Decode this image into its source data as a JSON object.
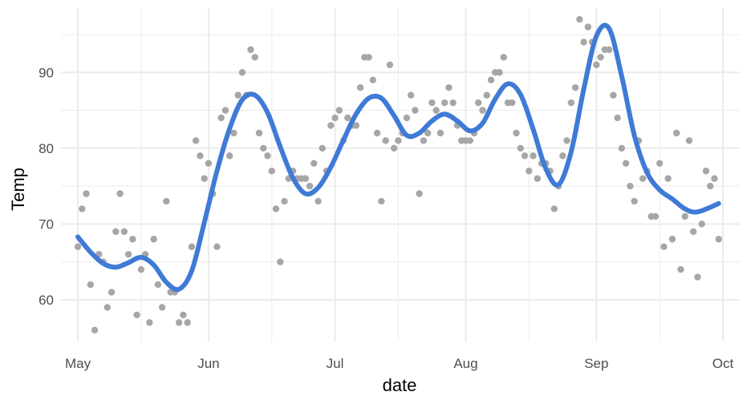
{
  "chart_data": {
    "type": "scatter",
    "xlabel": "date",
    "ylabel": "Temp",
    "xlim": [
      "1973-04-27",
      "1973-10-05"
    ],
    "ylim": [
      54.5,
      98.5
    ],
    "x_ticks": [
      {
        "date": "1973-05-01",
        "label": "May"
      },
      {
        "date": "1973-06-01",
        "label": "Jun"
      },
      {
        "date": "1973-07-01",
        "label": "Jul"
      },
      {
        "date": "1973-08-01",
        "label": "Aug"
      },
      {
        "date": "1973-09-01",
        "label": "Sep"
      },
      {
        "date": "1973-10-01",
        "label": "Oct"
      }
    ],
    "x_minor_ticks": [
      "1973-05-16",
      "1973-06-16",
      "1973-07-16",
      "1973-08-16",
      "1973-09-16"
    ],
    "y_ticks": [
      60,
      70,
      80,
      90
    ],
    "y_minor_ticks": [
      65,
      75,
      85,
      95
    ],
    "grid": true,
    "colors": {
      "points": "#a6a6a6",
      "smooth": "#3f7ad6",
      "grid": "#ebebeb"
    },
    "series": [
      {
        "kind": "points",
        "x": [
          "1973-05-01",
          "1973-05-02",
          "1973-05-03",
          "1973-05-04",
          "1973-05-05",
          "1973-05-06",
          "1973-05-07",
          "1973-05-08",
          "1973-05-09",
          "1973-05-10",
          "1973-05-11",
          "1973-05-12",
          "1973-05-13",
          "1973-05-14",
          "1973-05-15",
          "1973-05-16",
          "1973-05-17",
          "1973-05-18",
          "1973-05-19",
          "1973-05-20",
          "1973-05-21",
          "1973-05-22",
          "1973-05-23",
          "1973-05-24",
          "1973-05-25",
          "1973-05-26",
          "1973-05-27",
          "1973-05-28",
          "1973-05-29",
          "1973-05-30",
          "1973-05-31",
          "1973-06-01",
          "1973-06-02",
          "1973-06-03",
          "1973-06-04",
          "1973-06-05",
          "1973-06-06",
          "1973-06-07",
          "1973-06-08",
          "1973-06-09",
          "1973-06-10",
          "1973-06-11",
          "1973-06-12",
          "1973-06-13",
          "1973-06-14",
          "1973-06-15",
          "1973-06-16",
          "1973-06-17",
          "1973-06-18",
          "1973-06-19",
          "1973-06-20",
          "1973-06-21",
          "1973-06-22",
          "1973-06-23",
          "1973-06-24",
          "1973-06-25",
          "1973-06-26",
          "1973-06-27",
          "1973-06-28",
          "1973-06-29",
          "1973-06-30",
          "1973-07-01",
          "1973-07-02",
          "1973-07-03",
          "1973-07-04",
          "1973-07-05",
          "1973-07-06",
          "1973-07-07",
          "1973-07-08",
          "1973-07-09",
          "1973-07-10",
          "1973-07-11",
          "1973-07-12",
          "1973-07-13",
          "1973-07-14",
          "1973-07-15",
          "1973-07-16",
          "1973-07-17",
          "1973-07-18",
          "1973-07-19",
          "1973-07-20",
          "1973-07-21",
          "1973-07-22",
          "1973-07-23",
          "1973-07-24",
          "1973-07-25",
          "1973-07-26",
          "1973-07-27",
          "1973-07-28",
          "1973-07-29",
          "1973-07-30",
          "1973-07-31",
          "1973-08-01",
          "1973-08-02",
          "1973-08-03",
          "1973-08-04",
          "1973-08-05",
          "1973-08-06",
          "1973-08-07",
          "1973-08-08",
          "1973-08-09",
          "1973-08-10",
          "1973-08-11",
          "1973-08-12",
          "1973-08-13",
          "1973-08-14",
          "1973-08-15",
          "1973-08-16",
          "1973-08-17",
          "1973-08-18",
          "1973-08-19",
          "1973-08-20",
          "1973-08-21",
          "1973-08-22",
          "1973-08-23",
          "1973-08-24",
          "1973-08-25",
          "1973-08-26",
          "1973-08-27",
          "1973-08-28",
          "1973-08-29",
          "1973-08-30",
          "1973-08-31",
          "1973-09-01",
          "1973-09-02",
          "1973-09-03",
          "1973-09-04",
          "1973-09-05",
          "1973-09-06",
          "1973-09-07",
          "1973-09-08",
          "1973-09-09",
          "1973-09-10",
          "1973-09-11",
          "1973-09-12",
          "1973-09-13",
          "1973-09-14",
          "1973-09-15",
          "1973-09-16",
          "1973-09-17",
          "1973-09-18",
          "1973-09-19",
          "1973-09-20",
          "1973-09-21",
          "1973-09-22",
          "1973-09-23",
          "1973-09-24",
          "1973-09-25",
          "1973-09-26",
          "1973-09-27",
          "1973-09-28",
          "1973-09-29",
          "1973-09-30"
        ],
        "y": [
          67,
          72,
          74,
          62,
          56,
          66,
          65,
          59,
          61,
          69,
          74,
          69,
          66,
          68,
          58,
          64,
          66,
          57,
          68,
          62,
          59,
          73,
          61,
          61,
          57,
          58,
          57,
          67,
          81,
          79,
          76,
          78,
          74,
          67,
          84,
          85,
          79,
          82,
          87,
          90,
          87,
          93,
          92,
          82,
          80,
          79,
          77,
          72,
          65,
          73,
          76,
          77,
          76,
          76,
          76,
          75,
          78,
          73,
          80,
          77,
          83,
          84,
          85,
          81,
          84,
          83,
          83,
          88,
          92,
          92,
          89,
          82,
          73,
          81,
          91,
          80,
          81,
          82,
          84,
          87,
          85,
          74,
          81,
          82,
          86,
          85,
          82,
          86,
          88,
          86,
          83,
          81,
          81,
          81,
          82,
          86,
          85,
          87,
          89,
          90,
          90,
          92,
          86,
          86,
          82,
          80,
          79,
          77,
          79,
          76,
          78,
          78,
          77,
          72,
          75,
          79,
          81,
          86,
          88,
          97,
          94,
          96,
          94,
          91,
          92,
          93,
          93,
          87,
          84,
          80,
          78,
          75,
          73,
          81,
          76,
          77,
          71,
          71,
          78,
          67,
          76,
          68,
          82,
          64,
          71,
          81,
          69,
          63,
          70,
          77,
          75,
          76,
          68
        ]
      },
      {
        "kind": "smooth",
        "x": [
          "1973-05-01",
          "1973-05-04",
          "1973-05-07",
          "1973-05-10",
          "1973-05-13",
          "1973-05-16",
          "1973-05-19",
          "1973-05-22",
          "1973-05-25",
          "1973-05-28",
          "1973-05-31",
          "1973-06-03",
          "1973-06-06",
          "1973-06-09",
          "1973-06-12",
          "1973-06-15",
          "1973-06-18",
          "1973-06-21",
          "1973-06-24",
          "1973-06-27",
          "1973-06-30",
          "1973-07-03",
          "1973-07-06",
          "1973-07-09",
          "1973-07-12",
          "1973-07-15",
          "1973-07-18",
          "1973-07-21",
          "1973-07-24",
          "1973-07-27",
          "1973-07-30",
          "1973-08-02",
          "1973-08-05",
          "1973-08-08",
          "1973-08-11",
          "1973-08-14",
          "1973-08-17",
          "1973-08-20",
          "1973-08-23",
          "1973-08-26",
          "1973-08-29",
          "1973-09-01",
          "1973-09-04",
          "1973-09-07",
          "1973-09-10",
          "1973-09-13",
          "1973-09-16",
          "1973-09-19",
          "1973-09-22",
          "1973-09-25",
          "1973-09-30"
        ],
        "y": [
          68.3,
          66.3,
          64.8,
          64.3,
          64.9,
          65.6,
          64.6,
          62.3,
          61.4,
          63.8,
          70.2,
          77.0,
          82.6,
          86.4,
          87.0,
          84.7,
          80.2,
          76.1,
          74.0,
          74.8,
          77.5,
          81.1,
          84.5,
          86.6,
          86.6,
          84.3,
          81.7,
          82.0,
          83.6,
          84.5,
          83.6,
          82.3,
          83.3,
          86.5,
          88.5,
          87.1,
          82.5,
          77.3,
          75.2,
          79.5,
          87.8,
          94.8,
          95.8,
          89.5,
          81.7,
          76.8,
          74.5,
          73.3,
          72.0,
          71.6,
          72.7
        ]
      }
    ]
  }
}
